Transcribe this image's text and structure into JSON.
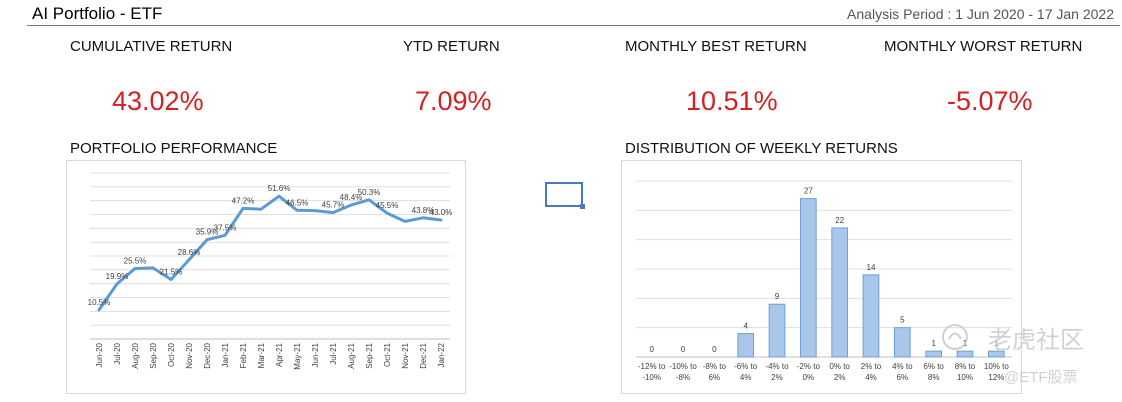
{
  "header": {
    "title": "AI Portfolio - ETF",
    "period": "Analysis Period : 1 Jun 2020 - 17 Jan 2022"
  },
  "kpis": [
    {
      "label": "CUMULATIVE RETURN",
      "value": "43.02%"
    },
    {
      "label": "YTD RETURN",
      "value": "7.09%"
    },
    {
      "label": "MONTHLY BEST RETURN",
      "value": "10.51%"
    },
    {
      "label": "MONTHLY WORST RETURN",
      "value": "-5.07%"
    }
  ],
  "sections": {
    "performance_title": "PORTFOLIO PERFORMANCE",
    "distribution_title": "DISTRIBUTION OF WEEKLY RETURNS"
  },
  "colors": {
    "kpi_value": "#d42020",
    "line": "#5b9bd5",
    "bar_fill": "#a9c7ea",
    "bar_stroke": "#6f9fd8",
    "grid": "#d9d9d9"
  },
  "chart_data": [
    {
      "type": "line",
      "categories": [
        "Jun-20",
        "Jul-20",
        "Aug-20",
        "Sep-20",
        "Oct-20",
        "Nov-20",
        "Dec-20",
        "Jan-21",
        "Feb-21",
        "Mar-21",
        "Apr-21",
        "May-21",
        "Jun-21",
        "Jul-21",
        "Aug-21",
        "Sep-21",
        "Oct-21",
        "Nov-21",
        "Dec-21",
        "Jan-22"
      ],
      "values": [
        10.5,
        19.9,
        25.5,
        25.7,
        21.5,
        28.6,
        35.9,
        37.5,
        47.2,
        46.9,
        51.6,
        46.5,
        46.4,
        45.7,
        48.4,
        50.3,
        45.5,
        42.5,
        43.8,
        43.0
      ],
      "data_labels": [
        "10.5%",
        "19.9%",
        "25.5%",
        "",
        "21.5%",
        "28.6%",
        "35.9%",
        "37.5%",
        "47.2%",
        "",
        "51.6%",
        "46.5%",
        "",
        "45.7%",
        "48.4%",
        "50.3%",
        "45.5%",
        "",
        "43.8%",
        "43.0%"
      ],
      "ylim": [
        0,
        60
      ],
      "grid": true
    },
    {
      "type": "bar",
      "categories": [
        [
          "-12% to",
          "-10%"
        ],
        [
          "-10% to",
          "-8%"
        ],
        [
          "-8% to",
          "6%"
        ],
        [
          "-6% to",
          "4%"
        ],
        [
          "-4% to",
          "2%"
        ],
        [
          "-2% to",
          "0%"
        ],
        [
          "0% to",
          "2%"
        ],
        [
          "2% to",
          "4%"
        ],
        [
          "4% to",
          "6%"
        ],
        [
          "6% to",
          "8%"
        ],
        [
          "8% to",
          "10%"
        ],
        [
          "10% to",
          "12%"
        ]
      ],
      "values": [
        0,
        0,
        0,
        4,
        9,
        27,
        22,
        14,
        5,
        1,
        1,
        1
      ],
      "ylim": [
        0,
        30
      ],
      "grid": true
    }
  ],
  "watermark": {
    "main": "老虎社区",
    "sub": "@ETF股票"
  }
}
